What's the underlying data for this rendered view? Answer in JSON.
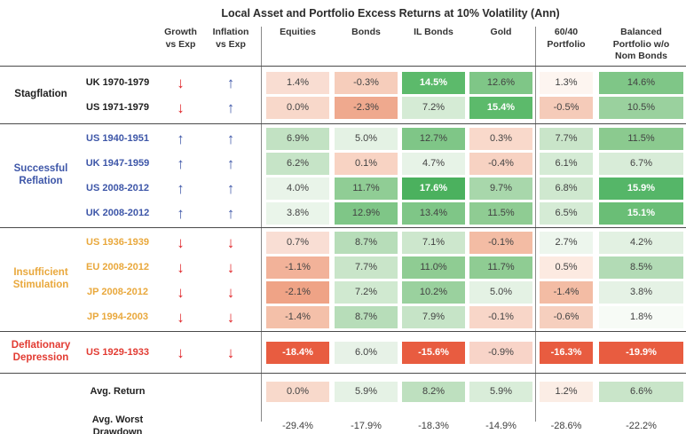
{
  "title": "Local Asset and Portfolio Excess Returns at 10% Volatility (Ann)",
  "header": {
    "growth": "Growth\nvs Exp",
    "inflation": "Inflation\nvs Exp",
    "assets": [
      "Equities",
      "Bonds",
      "IL Bonds",
      "Gold"
    ],
    "portfolios": [
      "60/40\nPortfolio",
      "Balanced\nPortfolio w/o\nNom Bonds"
    ]
  },
  "palette": {
    "arrow_up_blue": "#3d56a8",
    "arrow_down_red": "#e0262a",
    "rule_gray": "#4a4a4a",
    "divider_gray": "#8a8a8a"
  },
  "groups": [
    {
      "label": "Stagflation",
      "color": "#1f1f1f",
      "pad": "pad-stag",
      "rows": [
        {
          "period": "UK 1970-1979",
          "growth": "down",
          "inflation": "up",
          "cells": [
            {
              "v": "1.4%",
              "bg": "#f9ddd2"
            },
            {
              "v": "-0.3%",
              "bg": "#f6cdbb"
            },
            {
              "v": "14.5%",
              "bg": "#5cba6b",
              "fg": "white"
            },
            {
              "v": "12.6%",
              "bg": "#7fc687"
            },
            {
              "v": "1.3%",
              "bg": "#fdf5f0"
            },
            {
              "v": "14.6%",
              "bg": "#7fc687"
            }
          ]
        },
        {
          "period": "US 1971-1979",
          "growth": "down",
          "inflation": "up",
          "cells": [
            {
              "v": "0.0%",
              "bg": "#f8d8ca"
            },
            {
              "v": "-2.3%",
              "bg": "#efa98e"
            },
            {
              "v": "7.2%",
              "bg": "#d5ebd5"
            },
            {
              "v": "15.4%",
              "bg": "#5cba6b",
              "fg": "white"
            },
            {
              "v": "-0.5%",
              "bg": "#f5cbb9"
            },
            {
              "v": "10.5%",
              "bg": "#9ad19e"
            }
          ]
        }
      ]
    },
    {
      "label": "Successful\nReflation",
      "color": "#3d56a8",
      "pad": "pad-refl",
      "rows": [
        {
          "period": "US 1940-1951",
          "growth": "up",
          "inflation": "up",
          "cells": [
            {
              "v": "6.9%",
              "bg": "#c2e2c3"
            },
            {
              "v": "5.0%",
              "bg": "#e4f2e4"
            },
            {
              "v": "12.7%",
              "bg": "#7fc687"
            },
            {
              "v": "0.3%",
              "bg": "#f9d9cb"
            },
            {
              "v": "7.7%",
              "bg": "#c9e5c9"
            },
            {
              "v": "11.5%",
              "bg": "#8bca8f"
            }
          ]
        },
        {
          "period": "UK 1947-1959",
          "growth": "up",
          "inflation": "up",
          "cells": [
            {
              "v": "6.2%",
              "bg": "#c6e4c7"
            },
            {
              "v": "0.1%",
              "bg": "#f8d3c3"
            },
            {
              "v": "4.7%",
              "bg": "#e7f3e7"
            },
            {
              "v": "-0.4%",
              "bg": "#f7d2c2"
            },
            {
              "v": "6.1%",
              "bg": "#d5ebd5"
            },
            {
              "v": "6.7%",
              "bg": "#d8ecd8"
            }
          ]
        },
        {
          "period": "US 2008-2012",
          "growth": "up",
          "inflation": "up",
          "cells": [
            {
              "v": "4.0%",
              "bg": "#e9f4e9"
            },
            {
              "v": "11.7%",
              "bg": "#90cd95"
            },
            {
              "v": "17.6%",
              "bg": "#4bb15e",
              "fg": "white"
            },
            {
              "v": "9.7%",
              "bg": "#a8d7ab"
            },
            {
              "v": "6.8%",
              "bg": "#cfe8cf"
            },
            {
              "v": "15.9%",
              "bg": "#55b668",
              "fg": "white"
            }
          ]
        },
        {
          "period": "UK 2008-2012",
          "growth": "up",
          "inflation": "up",
          "cells": [
            {
              "v": "3.8%",
              "bg": "#eaf5ea"
            },
            {
              "v": "12.9%",
              "bg": "#7fc687"
            },
            {
              "v": "13.4%",
              "bg": "#7fc687"
            },
            {
              "v": "11.5%",
              "bg": "#8fcc93"
            },
            {
              "v": "6.5%",
              "bg": "#d5ebd5"
            },
            {
              "v": "15.1%",
              "bg": "#6abe76",
              "fg": "white"
            }
          ]
        }
      ]
    },
    {
      "label": "Insufficient\nStimulation",
      "color": "#e9a83c",
      "pad": "pad-stim",
      "rows": [
        {
          "period": "US 1936-1939",
          "growth": "down",
          "inflation": "down",
          "cells": [
            {
              "v": "0.7%",
              "bg": "#f9ded4"
            },
            {
              "v": "8.7%",
              "bg": "#b7ddb9"
            },
            {
              "v": "7.1%",
              "bg": "#cde7cd"
            },
            {
              "v": "-0.1%",
              "bg": "#f3bca4"
            },
            {
              "v": "2.7%",
              "bg": "#edf6ed"
            },
            {
              "v": "4.2%",
              "bg": "#e2f1e2"
            }
          ]
        },
        {
          "period": "EU 2008-2012",
          "growth": "down",
          "inflation": "down",
          "cells": [
            {
              "v": "-1.1%",
              "bg": "#f2b299"
            },
            {
              "v": "7.7%",
              "bg": "#c9e5c9"
            },
            {
              "v": "11.0%",
              "bg": "#8fcc93"
            },
            {
              "v": "11.7%",
              "bg": "#8fcc93"
            },
            {
              "v": "0.5%",
              "bg": "#fceae1"
            },
            {
              "v": "8.5%",
              "bg": "#b2dbb5"
            }
          ]
        },
        {
          "period": "JP 2008-2012",
          "growth": "down",
          "inflation": "down",
          "cells": [
            {
              "v": "-2.1%",
              "bg": "#efa386"
            },
            {
              "v": "7.2%",
              "bg": "#d0e9d0"
            },
            {
              "v": "10.2%",
              "bg": "#9ad19e"
            },
            {
              "v": "5.0%",
              "bg": "#e4f2e4"
            },
            {
              "v": "-1.4%",
              "bg": "#f3bca4"
            },
            {
              "v": "3.8%",
              "bg": "#e5f2e5"
            }
          ]
        },
        {
          "period": "JP 1994-2003",
          "growth": "down",
          "inflation": "down",
          "cells": [
            {
              "v": "-1.4%",
              "bg": "#f4c0a9"
            },
            {
              "v": "8.7%",
              "bg": "#b7ddb9"
            },
            {
              "v": "7.9%",
              "bg": "#c6e4c7"
            },
            {
              "v": "-0.1%",
              "bg": "#f8d6c8"
            },
            {
              "v": "-0.6%",
              "bg": "#f6cfbe"
            },
            {
              "v": "1.8%",
              "bg": "#f7fbf6"
            }
          ]
        }
      ]
    },
    {
      "label": "Deflationary\nDepression",
      "color": "#e23b32",
      "pad": "pad-depr",
      "rows": [
        {
          "period": "US 1929-1933",
          "growth": "down",
          "inflation": "down",
          "cells": [
            {
              "v": "-18.4%",
              "bg": "#e85c40",
              "fg": "white"
            },
            {
              "v": "6.0%",
              "bg": "#e7f2e7"
            },
            {
              "v": "-15.6%",
              "bg": "#e85c40",
              "fg": "white"
            },
            {
              "v": "-0.9%",
              "bg": "#f8d4c8"
            },
            {
              "v": "-16.3%",
              "bg": "#e85c40",
              "fg": "white"
            },
            {
              "v": "-19.9%",
              "bg": "#e85c40",
              "fg": "white"
            }
          ]
        }
      ]
    }
  ],
  "summary": {
    "avg_return": {
      "label": "Avg. Return",
      "cells": [
        {
          "v": "0.0%",
          "bg": "#f8d9cb"
        },
        {
          "v": "5.9%",
          "bg": "#e5f2e5"
        },
        {
          "v": "8.2%",
          "bg": "#bee0bf"
        },
        {
          "v": "5.9%",
          "bg": "#d9edd9"
        },
        {
          "v": "1.2%",
          "bg": "#fbede5"
        },
        {
          "v": "6.6%",
          "bg": "#c9e5c9"
        }
      ]
    },
    "avg_drawdown": {
      "label": "Avg. Worst\nDrawdown",
      "values": [
        "-29.4%",
        "-17.9%",
        "-18.3%",
        "-14.9%",
        "-28.6%",
        "-22.2%"
      ]
    }
  },
  "chart_data": {
    "type": "heatmap",
    "title": "Local Asset and Portfolio Excess Returns at 10% Volatility (Ann)",
    "columns": [
      "Equities",
      "Bonds",
      "IL Bonds",
      "Gold",
      "60/40 Portfolio",
      "Balanced Portfolio w/o Nom Bonds"
    ],
    "rows": [
      {
        "group": "Stagflation",
        "period": "UK 1970-1979",
        "growth_vs_exp": "down",
        "inflation_vs_exp": "up",
        "values": [
          1.4,
          -0.3,
          14.5,
          12.6,
          1.3,
          14.6
        ]
      },
      {
        "group": "Stagflation",
        "period": "US 1971-1979",
        "growth_vs_exp": "down",
        "inflation_vs_exp": "up",
        "values": [
          0.0,
          -2.3,
          7.2,
          15.4,
          -0.5,
          10.5
        ]
      },
      {
        "group": "Successful Reflation",
        "period": "US 1940-1951",
        "growth_vs_exp": "up",
        "inflation_vs_exp": "up",
        "values": [
          6.9,
          5.0,
          12.7,
          0.3,
          7.7,
          11.5
        ]
      },
      {
        "group": "Successful Reflation",
        "period": "UK 1947-1959",
        "growth_vs_exp": "up",
        "inflation_vs_exp": "up",
        "values": [
          6.2,
          0.1,
          4.7,
          -0.4,
          6.1,
          6.7
        ]
      },
      {
        "group": "Successful Reflation",
        "period": "US 2008-2012",
        "growth_vs_exp": "up",
        "inflation_vs_exp": "up",
        "values": [
          4.0,
          11.7,
          17.6,
          9.7,
          6.8,
          15.9
        ]
      },
      {
        "group": "Successful Reflation",
        "period": "UK 2008-2012",
        "growth_vs_exp": "up",
        "inflation_vs_exp": "up",
        "values": [
          3.8,
          12.9,
          13.4,
          11.5,
          6.5,
          15.1
        ]
      },
      {
        "group": "Insufficient Stimulation",
        "period": "US 1936-1939",
        "growth_vs_exp": "down",
        "inflation_vs_exp": "down",
        "values": [
          0.7,
          8.7,
          7.1,
          -0.1,
          2.7,
          4.2
        ]
      },
      {
        "group": "Insufficient Stimulation",
        "period": "EU 2008-2012",
        "growth_vs_exp": "down",
        "inflation_vs_exp": "down",
        "values": [
          -1.1,
          7.7,
          11.0,
          11.7,
          0.5,
          8.5
        ]
      },
      {
        "group": "Insufficient Stimulation",
        "period": "JP 2008-2012",
        "growth_vs_exp": "down",
        "inflation_vs_exp": "down",
        "values": [
          -2.1,
          7.2,
          10.2,
          5.0,
          -1.4,
          3.8
        ]
      },
      {
        "group": "Insufficient Stimulation",
        "period": "JP 1994-2003",
        "growth_vs_exp": "down",
        "inflation_vs_exp": "down",
        "values": [
          -1.4,
          8.7,
          7.9,
          -0.1,
          -0.6,
          1.8
        ]
      },
      {
        "group": "Deflationary Depression",
        "period": "US 1929-1933",
        "growth_vs_exp": "down",
        "inflation_vs_exp": "down",
        "values": [
          -18.4,
          6.0,
          -15.6,
          -0.9,
          -16.3,
          -19.9
        ]
      }
    ],
    "summary_rows": [
      {
        "label": "Avg. Return",
        "values": [
          0.0,
          5.9,
          8.2,
          5.9,
          1.2,
          6.6
        ]
      },
      {
        "label": "Avg. Worst Drawdown",
        "values": [
          -29.4,
          -17.9,
          -18.3,
          -14.9,
          -28.6,
          -22.2
        ]
      }
    ],
    "legend_position": "none",
    "grid": false
  }
}
